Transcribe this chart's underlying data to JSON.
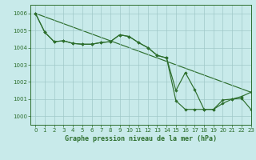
{
  "title": "Graphe pression niveau de la mer (hPa)",
  "bg_color": "#c8eaea",
  "grid_color": "#a0c8c8",
  "line_color": "#2d6e2d",
  "xlim": [
    -0.5,
    23
  ],
  "ylim": [
    999.5,
    1006.5
  ],
  "yticks": [
    1000,
    1001,
    1002,
    1003,
    1004,
    1005,
    1006
  ],
  "xticks": [
    0,
    1,
    2,
    3,
    4,
    5,
    6,
    7,
    8,
    9,
    10,
    11,
    12,
    13,
    14,
    15,
    16,
    17,
    18,
    19,
    20,
    21,
    22,
    23
  ],
  "line1_x": [
    0,
    1,
    2,
    3,
    4,
    5,
    6,
    7,
    8,
    9,
    10,
    11,
    12,
    13,
    14,
    15,
    16,
    17,
    18,
    19,
    20,
    21,
    22,
    23
  ],
  "line1_y": [
    1006.0,
    1004.9,
    1004.35,
    1004.4,
    1004.25,
    1004.2,
    1004.2,
    1004.3,
    1004.35,
    1004.75,
    1004.65,
    1004.3,
    1004.0,
    1003.55,
    1003.4,
    1001.5,
    1002.55,
    1001.55,
    1000.4,
    1000.4,
    1000.75,
    1001.0,
    1001.05,
    1000.4
  ],
  "line2_x": [
    0,
    1,
    2,
    3,
    4,
    5,
    6,
    7,
    8,
    9,
    10,
    11,
    12,
    13,
    14,
    15,
    16,
    17,
    18,
    19,
    20,
    21,
    22,
    23
  ],
  "line2_y": [
    1006.0,
    1004.9,
    1004.35,
    1004.4,
    1004.25,
    1004.2,
    1004.2,
    1004.3,
    1004.35,
    1004.75,
    1004.65,
    1004.3,
    1004.0,
    1003.55,
    1003.4,
    1000.9,
    1000.4,
    1000.4,
    1000.4,
    1000.4,
    1000.95,
    1001.0,
    1001.15,
    1001.4
  ],
  "line3_x": [
    0,
    23
  ],
  "line3_y": [
    1006.0,
    1001.4
  ]
}
